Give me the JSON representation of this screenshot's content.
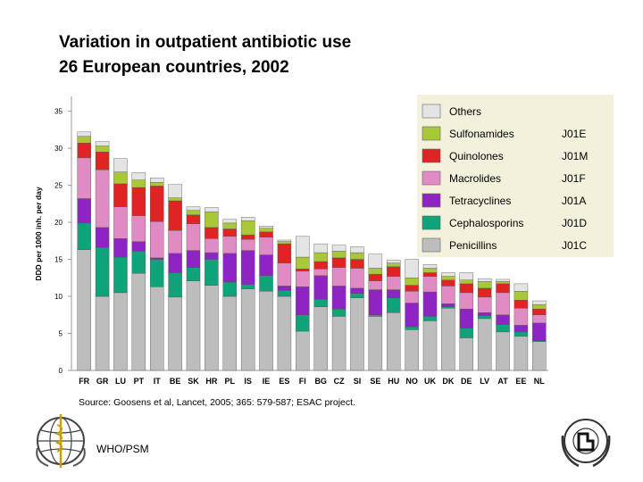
{
  "title_line1": "Variation in outpatient antibiotic use",
  "title_line2": "26 European countries, 2002",
  "source": "Source: Goosens et al, Lancet, 2005; 365: 579-587; ESAC project.",
  "credit": "WHO/PSM",
  "colors": {
    "Penicillins": "#bdbdbd",
    "Cephalosporins": "#0fa37a",
    "Tetracyclines": "#8e24c4",
    "Macrolides": "#e08bc3",
    "Quinolones": "#e02424",
    "Sulfonamides": "#a8c83a",
    "Others": "#e4e4e4",
    "legend_bg": "#f3f0dc"
  },
  "chart_data": {
    "type": "bar",
    "stacked": true,
    "ylabel": "DDD per 1000 inh. per day",
    "ylim": [
      0,
      37
    ],
    "yticks": [
      0,
      5,
      10,
      15,
      20,
      25,
      30,
      35
    ],
    "grid": false,
    "legend_position": "top-right",
    "categories": [
      "FR",
      "GR",
      "LU",
      "PT",
      "IT",
      "BE",
      "SK",
      "HR",
      "PL",
      "IS",
      "IE",
      "ES",
      "FI",
      "BG",
      "CZ",
      "SI",
      "SE",
      "HU",
      "NO",
      "UK",
      "DK",
      "DE",
      "LV",
      "AT",
      "EE",
      "NL"
    ],
    "legend": [
      {
        "name": "Others",
        "code": ""
      },
      {
        "name": "Sulfonamides",
        "code": "J01E"
      },
      {
        "name": "Quinolones",
        "code": "J01M"
      },
      {
        "name": "Macrolides",
        "code": "J01F"
      },
      {
        "name": "Tetracyclines",
        "code": "J01A"
      },
      {
        "name": "Cephalosporins",
        "code": "J01D"
      },
      {
        "name": "Penicillins",
        "code": "J01C"
      }
    ],
    "series": [
      {
        "name": "Penicillins",
        "values": [
          16.3,
          10.0,
          10.5,
          13.1,
          11.3,
          9.9,
          12.1,
          11.5,
          10.0,
          11.0,
          10.7,
          10.0,
          5.3,
          8.6,
          7.3,
          9.8,
          7.3,
          7.8,
          5.5,
          6.7,
          8.4,
          4.4,
          7.0,
          5.2,
          4.6,
          3.9
        ]
      },
      {
        "name": "Cephalosporins",
        "values": [
          3.6,
          6.6,
          4.8,
          3.0,
          3.7,
          3.3,
          1.8,
          3.5,
          1.9,
          0.6,
          2.1,
          0.8,
          2.2,
          1.0,
          1.0,
          0.6,
          0.2,
          2.0,
          0.4,
          0.6,
          0.2,
          1.3,
          0.4,
          1.0,
          0.6,
          0.1
        ]
      },
      {
        "name": "Tetracyclines",
        "values": [
          3.3,
          2.7,
          2.5,
          1.3,
          0.2,
          2.6,
          2.3,
          0.9,
          3.9,
          4.6,
          2.8,
          0.6,
          3.8,
          3.2,
          3.1,
          0.7,
          3.4,
          1.1,
          3.2,
          3.3,
          0.4,
          2.6,
          0.4,
          1.3,
          0.9,
          2.4
        ]
      },
      {
        "name": "Macrolides",
        "values": [
          5.5,
          7.8,
          4.3,
          3.5,
          4.9,
          3.1,
          3.6,
          1.9,
          2.3,
          1.5,
          2.4,
          3.1,
          2.1,
          0.9,
          2.5,
          2.7,
          1.2,
          1.8,
          1.6,
          2.1,
          2.4,
          2.2,
          2.1,
          3.0,
          2.3,
          1.1
        ]
      },
      {
        "name": "Quinolones",
        "values": [
          2.0,
          2.4,
          3.1,
          3.8,
          4.8,
          4.0,
          1.2,
          1.5,
          1.0,
          0.6,
          0.7,
          2.6,
          0.3,
          1.0,
          1.3,
          1.2,
          0.9,
          1.3,
          0.8,
          0.5,
          0.8,
          1.2,
          1.2,
          1.2,
          1.1,
          0.8
        ]
      },
      {
        "name": "Sulfonamides",
        "values": [
          0.9,
          0.8,
          1.6,
          1.0,
          0.5,
          0.4,
          0.6,
          2.1,
          0.8,
          1.9,
          0.5,
          0.3,
          1.6,
          1.2,
          0.9,
          0.9,
          0.8,
          0.5,
          1.0,
          0.6,
          0.5,
          0.5,
          0.9,
          0.3,
          1.2,
          0.6
        ]
      },
      {
        "name": "Others",
        "values": [
          0.6,
          0.6,
          1.8,
          1.0,
          0.6,
          1.8,
          0.5,
          0.6,
          0.5,
          0.5,
          0.3,
          0.2,
          2.8,
          1.2,
          0.8,
          0.8,
          1.9,
          0.4,
          2.5,
          0.5,
          0.5,
          1.0,
          0.4,
          0.3,
          1.0,
          0.5
        ]
      }
    ]
  }
}
